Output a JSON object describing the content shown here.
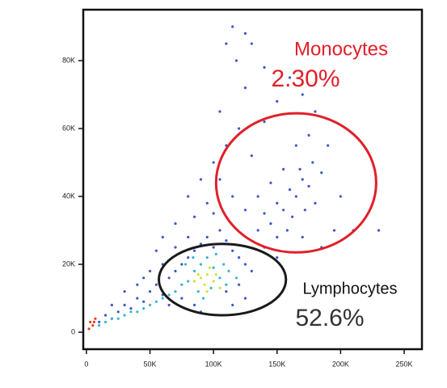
{
  "chart_data": {
    "type": "scatter",
    "xlim": [
      -2500,
      264000
    ],
    "ylim": [
      -5000,
      95000
    ],
    "xticks": [
      0,
      {
        "value": 50000,
        "label": "50K"
      },
      {
        "value": 100000,
        "label": "100K"
      },
      {
        "value": 150000,
        "label": "150K"
      },
      {
        "value": 200000,
        "label": "200K"
      },
      {
        "value": 250000,
        "label": "250K"
      }
    ],
    "yticks": [
      0,
      {
        "value": 20000,
        "label": "20K"
      },
      {
        "value": 40000,
        "label": "40K"
      },
      {
        "value": 60000,
        "label": "60K"
      },
      {
        "value": 80000,
        "label": "80K"
      }
    ],
    "series": [
      {
        "color": "#3b58c8",
        "x": [
          10000,
          15000,
          20000,
          25000,
          30000,
          35000,
          40000,
          45000,
          50000,
          55000,
          60000,
          65000,
          70000,
          75000,
          80000,
          85000,
          90000,
          95000,
          100000,
          105000,
          110000,
          115000,
          120000,
          125000,
          130000,
          60000,
          70000,
          80000,
          50000,
          40000,
          30000,
          20000,
          45000,
          65000,
          75000,
          85000,
          90000,
          110000,
          120000,
          125000,
          115000,
          135000,
          140000,
          145000,
          150000,
          155000,
          160000,
          165000,
          170000,
          175000,
          180000,
          158000,
          150000,
          162000,
          172000,
          168000,
          178000,
          185000,
          190000,
          175000,
          165000,
          155000,
          145000,
          135000,
          125000,
          115000,
          105000,
          95000,
          85000,
          110000,
          120000,
          130000,
          140000,
          150000,
          160000,
          125000,
          118000,
          130000,
          115000,
          140000,
          105000,
          100000,
          90000,
          200000,
          210000,
          195000,
          230000,
          185000,
          170000,
          150000,
          140000,
          80000,
          70000,
          60000,
          55000,
          100000,
          170000,
          180000,
          110000,
          125000
        ],
        "y": [
          3000,
          5000,
          4000,
          6000,
          8000,
          7000,
          10000,
          9000,
          12000,
          14000,
          11000,
          16000,
          18000,
          20000,
          22000,
          24000,
          26000,
          28000,
          25000,
          30000,
          27000,
          24000,
          22000,
          20000,
          18000,
          20000,
          25000,
          28000,
          18000,
          14000,
          12000,
          8000,
          16000,
          8000,
          10000,
          8000,
          6000,
          12000,
          14000,
          10000,
          8000,
          30000,
          35000,
          32000,
          38000,
          36000,
          42000,
          40000,
          45000,
          43000,
          38000,
          30000,
          28000,
          34000,
          36000,
          48000,
          50000,
          47000,
          55000,
          58000,
          55000,
          48000,
          44000,
          40000,
          36000,
          40000,
          45000,
          38000,
          34000,
          55000,
          60000,
          52000,
          62000,
          68000,
          75000,
          72000,
          80000,
          85000,
          90000,
          78000,
          65000,
          50000,
          45000,
          40000,
          30000,
          30000,
          30000,
          25000,
          28000,
          22000,
          25000,
          40000,
          32000,
          28000,
          24000,
          35000,
          70000,
          65000,
          85000,
          88000
        ]
      },
      {
        "color": "#3cb4c8",
        "x": [
          80000,
          85000,
          90000,
          95000,
          100000,
          105000,
          110000,
          88000,
          92000,
          98000,
          102000,
          78000,
          84000,
          108000,
          112000,
          70000,
          75000,
          60000,
          50000,
          40000,
          30000,
          20000,
          10000,
          15000,
          25000,
          35000,
          45000,
          55000,
          65000,
          118000
        ],
        "y": [
          15000,
          18000,
          20000,
          22000,
          19000,
          16000,
          14000,
          12000,
          10000,
          13000,
          23000,
          20000,
          22000,
          20000,
          18000,
          12000,
          14000,
          10000,
          8000,
          6000,
          5000,
          4000,
          2000,
          3000,
          4000,
          6000,
          7000,
          9000,
          11000,
          16000
        ]
      },
      {
        "color": "#d8e03a",
        "x": [
          90000,
          95000,
          100000,
          93000,
          97000,
          88000,
          102000,
          95000,
          105000,
          85000
        ],
        "y": [
          16000,
          17000,
          15000,
          14000,
          19000,
          17000,
          17000,
          12000,
          13000,
          15000
        ]
      },
      {
        "color": "#e8401c",
        "x": [
          3000,
          5000,
          7000,
          2000,
          6000
        ],
        "y": [
          3000,
          2000,
          4000,
          1000,
          3000
        ]
      }
    ],
    "gates": [
      {
        "name": "Monocytes",
        "label": "2.30%",
        "color": "#e0202a",
        "cx": 165000,
        "cy": 44000,
        "rx": 63000,
        "ry": 20500
      },
      {
        "name": "Lymphocytes",
        "label": "52.6%",
        "color": "#1a1a1a",
        "cx": 107000,
        "cy": 15500,
        "rx": 50000,
        "ry": 10500
      }
    ]
  }
}
